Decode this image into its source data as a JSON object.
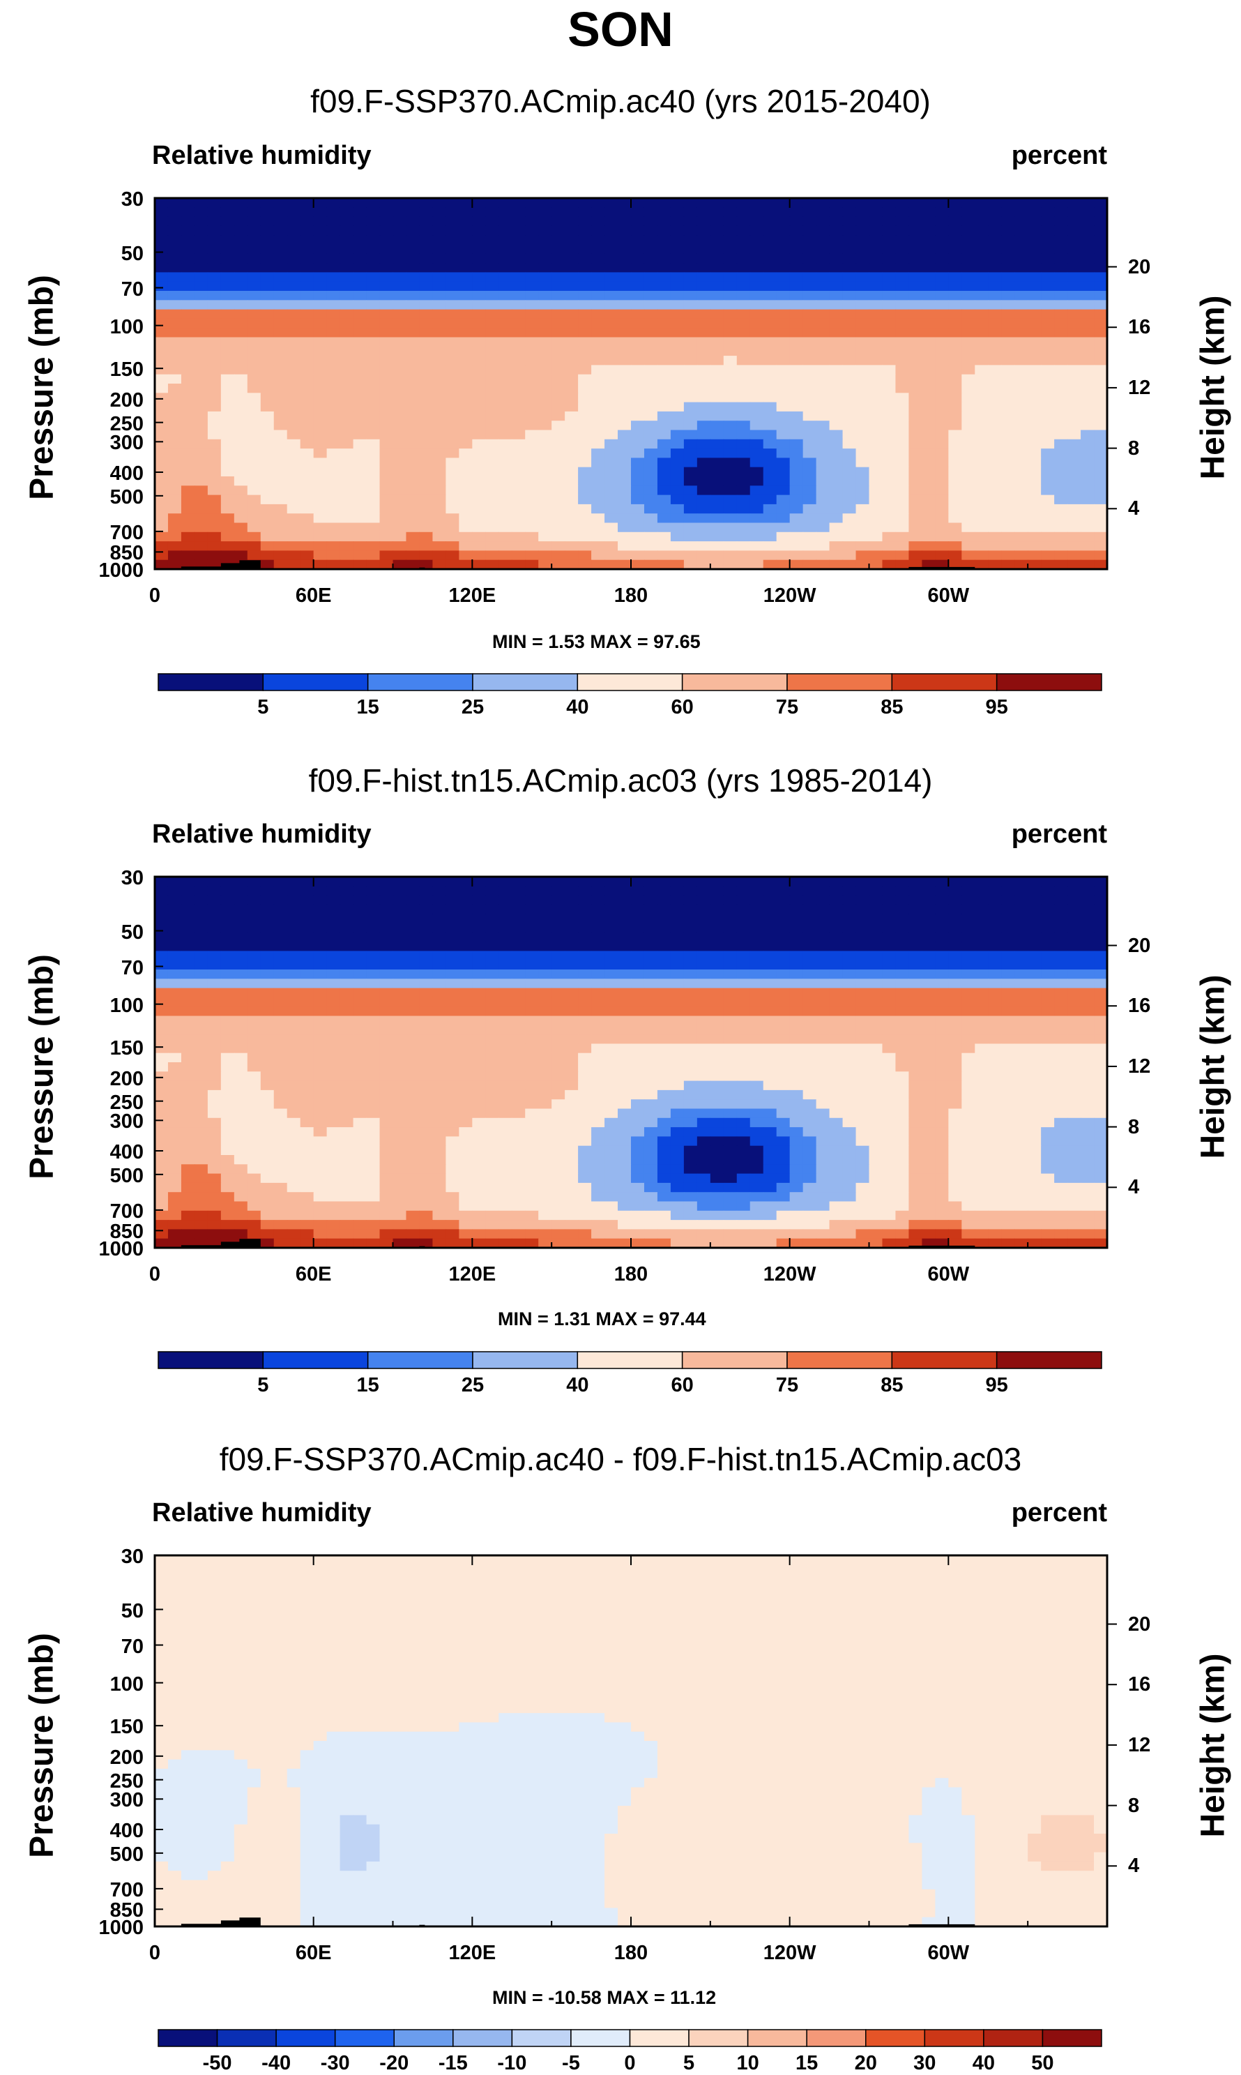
{
  "title": "SON",
  "colors": {
    "abs": [
      "#08107a",
      "#0a2fb4",
      "#0a45dd",
      "#1e63ee",
      "#4583ef",
      "#6b9ded",
      "#96b7ef",
      "#c0d4f5",
      "#e0ecfa",
      "#fde8d8",
      "#fbd3bd",
      "#f8b99c",
      "#f49878",
      "#ee7548",
      "#e55427",
      "#cc3717",
      "#b02312",
      "#8d0e0e"
    ],
    "diff": [
      "#08107a",
      "#0a2fb4",
      "#0a45dd",
      "#1e63ee",
      "#4583ef",
      "#6b9ded",
      "#96b7ef",
      "#c0d4f5",
      "#e0ecfa",
      "#fde8d8",
      "#fbd3bd",
      "#f8b99c",
      "#f49878",
      "#ee7548",
      "#e55427",
      "#cc3717",
      "#b02312",
      "#8d0e0e"
    ],
    "topo": "#000000"
  },
  "chart_data": [
    {
      "type": "heatmap",
      "title": "f09.F-SSP370.ACmip.ac40 (yrs 2015-2040)",
      "left_label": "Relative humidity",
      "right_label": "percent",
      "ylabel": "Pressure (mb)",
      "ylabel_right": "Height (km)",
      "xticks": [
        "0",
        "60E",
        "120E",
        "180",
        "120W",
        "60W"
      ],
      "x_values_deg": [
        0,
        60,
        120,
        180,
        240,
        300
      ],
      "xlim": [
        0,
        360
      ],
      "pressure_ticks": [
        "30",
        "50",
        "70",
        "100",
        "150",
        "200",
        "250",
        "300",
        "400",
        "500",
        "700",
        "850",
        "1000"
      ],
      "pressure_values": [
        30,
        50,
        70,
        100,
        150,
        200,
        250,
        300,
        400,
        500,
        700,
        850,
        1000
      ],
      "height_ticks": [
        "20",
        "16",
        "12",
        "8",
        "4"
      ],
      "height_values_km": [
        20,
        16,
        12,
        8,
        4
      ],
      "min_label": "MIN =   1.53  MAX =  97.65",
      "min": 1.53,
      "max": 97.65,
      "levels": [
        "5",
        "15",
        "25",
        "40",
        "60",
        "75",
        "85",
        "95"
      ],
      "level_values": [
        5,
        15,
        25,
        40,
        60,
        75,
        85,
        95
      ],
      "scale": "abs",
      "dry_core": {
        "lon": 215,
        "p": 390,
        "value": 3
      },
      "dry_west": {
        "lon": 355,
        "p": 390,
        "value": 25
      }
    },
    {
      "type": "heatmap",
      "title": "f09.F-hist.tn15.ACmip.ac03 (yrs 1985-2014)",
      "left_label": "Relative humidity",
      "right_label": "percent",
      "ylabel": "Pressure (mb)",
      "ylabel_right": "Height (km)",
      "xticks": [
        "0",
        "60E",
        "120E",
        "180",
        "120W",
        "60W"
      ],
      "x_values_deg": [
        0,
        60,
        120,
        180,
        240,
        300
      ],
      "xlim": [
        0,
        360
      ],
      "pressure_ticks": [
        "30",
        "50",
        "70",
        "100",
        "150",
        "200",
        "250",
        "300",
        "400",
        "500",
        "700",
        "850",
        "1000"
      ],
      "pressure_values": [
        30,
        50,
        70,
        100,
        150,
        200,
        250,
        300,
        400,
        500,
        700,
        850,
        1000
      ],
      "height_ticks": [
        "20",
        "16",
        "12",
        "8",
        "4"
      ],
      "height_values_km": [
        20,
        16,
        12,
        8,
        4
      ],
      "min_label": "MIN =   1.31  MAX =  97.44",
      "min": 1.31,
      "max": 97.44,
      "levels": [
        "5",
        "15",
        "25",
        "40",
        "60",
        "75",
        "85",
        "95"
      ],
      "level_values": [
        5,
        15,
        25,
        40,
        60,
        75,
        85,
        95
      ],
      "scale": "abs",
      "dry_core": {
        "lon": 215,
        "p": 400,
        "value": 3
      },
      "dry_west": {
        "lon": 355,
        "p": 400,
        "value": 25
      }
    },
    {
      "type": "heatmap",
      "title": "f09.F-SSP370.ACmip.ac40 - f09.F-hist.tn15.ACmip.ac03",
      "left_label": "Relative humidity",
      "right_label": "percent",
      "ylabel": "Pressure (mb)",
      "ylabel_right": "Height (km)",
      "xticks": [
        "0",
        "60E",
        "120E",
        "180",
        "120W",
        "60W"
      ],
      "x_values_deg": [
        0,
        60,
        120,
        180,
        240,
        300
      ],
      "xlim": [
        0,
        360
      ],
      "pressure_ticks": [
        "30",
        "50",
        "70",
        "100",
        "150",
        "200",
        "250",
        "300",
        "400",
        "500",
        "700",
        "850",
        "1000"
      ],
      "pressure_values": [
        30,
        50,
        70,
        100,
        150,
        200,
        250,
        300,
        400,
        500,
        700,
        850,
        1000
      ],
      "height_ticks": [
        "20",
        "16",
        "12",
        "8",
        "4"
      ],
      "height_values_km": [
        20,
        16,
        12,
        8,
        4
      ],
      "min_label": "MIN = -10.58  MAX =  11.12",
      "min": -10.58,
      "max": 11.12,
      "levels": [
        "-50",
        "-40",
        "-30",
        "-20",
        "-15",
        "-10",
        "-5",
        "0",
        "5",
        "10",
        "15",
        "20",
        "30",
        "40",
        "50"
      ],
      "level_values": [
        -50,
        -40,
        -30,
        -20,
        -15,
        -10,
        -5,
        0,
        5,
        10,
        15,
        20,
        30,
        40,
        50
      ],
      "scale": "diff"
    }
  ]
}
